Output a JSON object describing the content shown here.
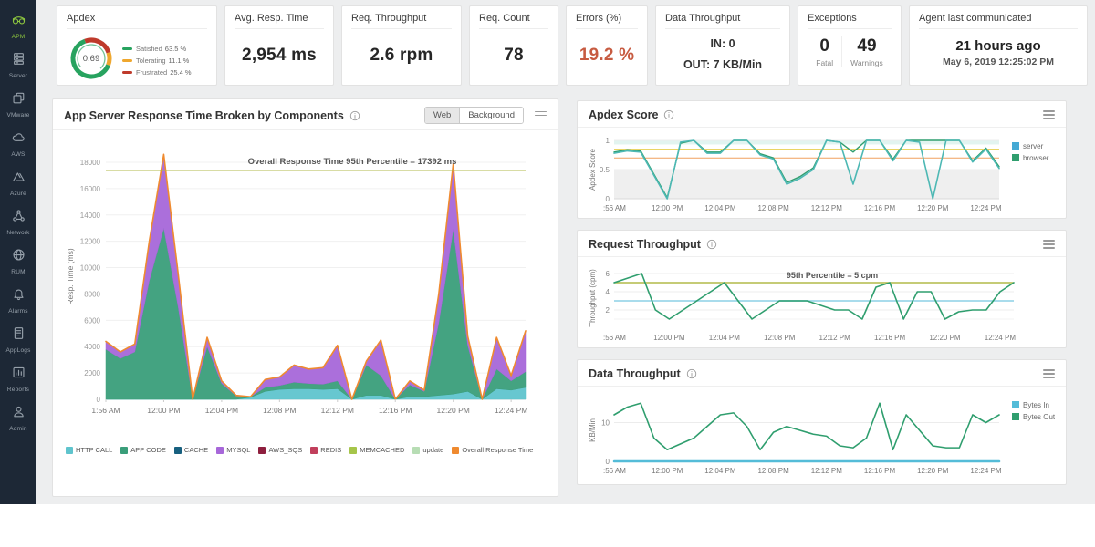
{
  "sidebar": {
    "bg": "#1d2836",
    "active_color": "#8dc63f",
    "items": [
      {
        "id": "apm",
        "label": "APM",
        "icon": "apm-icon",
        "active": true
      },
      {
        "id": "server",
        "label": "Server",
        "icon": "server-icon",
        "active": false
      },
      {
        "id": "vmware",
        "label": "VMware",
        "icon": "vmware-icon",
        "active": false
      },
      {
        "id": "aws",
        "label": "AWS",
        "icon": "aws-icon",
        "active": false
      },
      {
        "id": "azure",
        "label": "Azure",
        "icon": "azure-icon",
        "active": false
      },
      {
        "id": "network",
        "label": "Network",
        "icon": "network-icon",
        "active": false
      },
      {
        "id": "rum",
        "label": "RUM",
        "icon": "rum-icon",
        "active": false
      },
      {
        "id": "alarms",
        "label": "Alarms",
        "icon": "alarms-icon",
        "active": false
      },
      {
        "id": "applogs",
        "label": "AppLogs",
        "icon": "applogs-icon",
        "active": false
      },
      {
        "id": "reports",
        "label": "Reports",
        "icon": "reports-icon",
        "active": false
      },
      {
        "id": "admin",
        "label": "Admin",
        "icon": "admin-icon",
        "active": false
      }
    ]
  },
  "kpis": {
    "apdex": {
      "title": "Apdex",
      "score": "0.69",
      "segments": [
        {
          "label": "Satisfied",
          "display": "63.5 %",
          "pct": 63.5,
          "color": "#27a35f"
        },
        {
          "label": "Tolerating",
          "display": "11.1 %",
          "pct": 11.1,
          "color": "#efa72e"
        },
        {
          "label": "Frustrated",
          "display": "25.4 %",
          "pct": 25.4,
          "color": "#bf3a2b"
        }
      ]
    },
    "avg_resp_time": {
      "title": "Avg. Resp. Time",
      "value": "2,954 ms"
    },
    "req_throughput": {
      "title": "Req. Throughput",
      "value": "2.6 rpm"
    },
    "req_count": {
      "title": "Req. Count",
      "value": "78"
    },
    "errors": {
      "title": "Errors (%)",
      "value": "19.2 %",
      "color": "#c75b41"
    },
    "data_throughput": {
      "title": "Data Throughput",
      "in": "IN: 0",
      "out": "OUT: 7 KB/Min"
    },
    "exceptions": {
      "title": "Exceptions",
      "fatal_value": "0",
      "fatal_label": "Fatal",
      "warnings_value": "49",
      "warnings_label": "Warnings"
    },
    "agent": {
      "title": "Agent last communicated",
      "value": "21 hours ago",
      "timestamp": "May 6, 2019 12:25:02 PM"
    }
  },
  "main_chart": {
    "title": "App Server Response Time Broken by Components",
    "toggle": {
      "options": [
        "Web",
        "Background"
      ],
      "selected": "Web"
    },
    "annotation": "Overall Response Time 95th Percentile = 17392 ms",
    "percentile_value": 17392,
    "percentile_color": "#b2ba49",
    "ylabel": "Resp. Time (ms)",
    "yticks": [
      0,
      2000,
      4000,
      6000,
      8000,
      10000,
      12000,
      14000,
      16000,
      18000
    ],
    "xticks": [
      "1:56 AM",
      "12:00 PM",
      "12:04 PM",
      "12:08 PM",
      "12:12 PM",
      "12:16 PM",
      "12:20 PM",
      "12:24 PM"
    ],
    "xtick_indices": [
      0,
      4,
      8,
      12,
      16,
      20,
      24,
      28
    ],
    "chart_data": {
      "type": "stacked-area",
      "ylim": [
        0,
        18000
      ],
      "series": [
        {
          "name": "HTTP CALL",
          "color": "#5fc4cd",
          "values": [
            0,
            0,
            0,
            0,
            0,
            0,
            0,
            0,
            0,
            0,
            150,
            600,
            750,
            800,
            800,
            750,
            800,
            0,
            300,
            300,
            0,
            200,
            200,
            300,
            400,
            600,
            0,
            800,
            700,
            900
          ]
        },
        {
          "name": "APP CODE",
          "color": "#3a9e7a",
          "values": [
            3800,
            3100,
            3600,
            9000,
            13000,
            7000,
            0,
            4000,
            1200,
            250,
            50,
            300,
            300,
            500,
            400,
            400,
            600,
            0,
            2300,
            1500,
            0,
            900,
            400,
            5500,
            12500,
            3500,
            0,
            1500,
            700,
            1200
          ]
        },
        {
          "name": "CACHE",
          "color": "#17607f",
          "values": [
            0,
            0,
            0,
            0,
            0,
            0,
            0,
            0,
            0,
            0,
            0,
            0,
            0,
            0,
            0,
            0,
            0,
            0,
            0,
            0,
            0,
            0,
            0,
            0,
            0,
            0,
            0,
            0,
            0,
            0
          ]
        },
        {
          "name": "MYSQL",
          "color": "#a767d9",
          "values": [
            600,
            500,
            600,
            3000,
            5600,
            2500,
            0,
            700,
            200,
            50,
            0,
            600,
            650,
            1300,
            1100,
            1250,
            2700,
            0,
            300,
            2700,
            0,
            300,
            100,
            2200,
            5000,
            700,
            0,
            2400,
            400,
            3100
          ]
        },
        {
          "name": "AWS_SQS",
          "color": "#8e1f3e",
          "values": [
            0,
            0,
            0,
            0,
            0,
            0,
            0,
            0,
            0,
            0,
            0,
            0,
            0,
            0,
            0,
            0,
            0,
            0,
            0,
            0,
            0,
            0,
            0,
            0,
            0,
            0,
            0,
            0,
            0,
            0
          ]
        },
        {
          "name": "REDIS",
          "color": "#c13f5c",
          "values": [
            0,
            0,
            0,
            0,
            0,
            0,
            0,
            0,
            0,
            0,
            0,
            0,
            0,
            0,
            0,
            0,
            0,
            0,
            0,
            0,
            0,
            0,
            0,
            0,
            0,
            0,
            0,
            0,
            0,
            0
          ]
        },
        {
          "name": "MEMCACHED",
          "color": "#a6c54a",
          "values": [
            0,
            0,
            0,
            0,
            0,
            0,
            0,
            0,
            0,
            0,
            0,
            0,
            0,
            0,
            0,
            0,
            0,
            0,
            0,
            0,
            0,
            0,
            0,
            0,
            0,
            0,
            0,
            0,
            0,
            0
          ]
        },
        {
          "name": "update",
          "color": "#b7ddb4",
          "values": [
            0,
            0,
            0,
            0,
            0,
            0,
            0,
            0,
            0,
            0,
            0,
            0,
            0,
            0,
            0,
            0,
            0,
            0,
            0,
            0,
            0,
            0,
            0,
            0,
            0,
            0,
            0,
            0,
            0,
            0
          ]
        }
      ],
      "line_series": {
        "name": "Overall Response Time",
        "color": "#ef8a2f"
      }
    }
  },
  "right_charts": [
    {
      "id": "apdex-score",
      "title": "Apdex Score",
      "ylabel": "Apdex Score",
      "yticks": [
        0,
        0.5,
        1
      ],
      "xticks": [
        ":56 AM",
        "12:00 PM",
        "12:04 PM",
        "12:08 PM",
        "12:12 PM",
        "12:16 PM",
        "12:20 PM",
        "12:24 PM"
      ],
      "xtick_indices": [
        0,
        4,
        8,
        12,
        16,
        20,
        24,
        28
      ],
      "legend": [
        {
          "label": "server",
          "color": "#45a9d4"
        },
        {
          "label": "browser",
          "color": "#2f9e6e"
        }
      ],
      "thresholds": {
        "top_band": {
          "from": 0.93,
          "to": 1,
          "color": "#e2f4f0"
        },
        "yellow_line": {
          "y": 0.85,
          "color": "#e6cf4e"
        },
        "orange_line": {
          "y": 0.7,
          "color": "#f0a05e"
        },
        "gray_band": {
          "from": 0,
          "to": 0.5,
          "color": "#efefef"
        },
        "dotted_line": {
          "y": 0.5,
          "color": "#c5c5c5"
        }
      },
      "chart_data": {
        "type": "line",
        "ylim": [
          0,
          1
        ],
        "series": [
          {
            "name": "browser",
            "color": "#2f9e6e",
            "width": 1.4,
            "values": [
              0.8,
              0.84,
              0.82,
              0.42,
              0.02,
              0.95,
              1,
              0.8,
              0.8,
              1,
              1,
              0.77,
              0.7,
              0.28,
              0.38,
              0.53,
              1,
              0.97,
              0.8,
              1,
              1,
              0.68,
              1,
              1,
              1,
              1,
              1,
              0.65,
              0.87,
              0.55
            ]
          },
          {
            "name": "server",
            "color": "#4db8b4",
            "width": 1.6,
            "values": [
              0.78,
              0.82,
              0.8,
              0.4,
              0,
              0.97,
              1,
              0.78,
              0.78,
              1,
              1,
              0.75,
              0.68,
              0.25,
              0.35,
              0.5,
              1,
              0.97,
              0.25,
              1,
              1,
              0.65,
              1,
              0.97,
              0,
              1,
              1,
              0.63,
              0.85,
              0.52
            ]
          }
        ]
      }
    },
    {
      "id": "request-throughput",
      "title": "Request Throughput",
      "ylabel": "Throughput (cpm)",
      "yticks": [
        2,
        4,
        6
      ],
      "xticks": [
        ":56 AM",
        "12:00 PM",
        "12:04 PM",
        "12:08 PM",
        "12:12 PM",
        "12:16 PM",
        "12:20 PM",
        "12:24 PM"
      ],
      "xtick_indices": [
        0,
        4,
        8,
        12,
        16,
        20,
        24,
        28
      ],
      "annotation": "95th Percentile = 5 cpm",
      "percentile_value": 5,
      "percentile_color": "#b2ba49",
      "ref_line": {
        "y": 3,
        "color": "#a9dcec"
      },
      "chart_data": {
        "type": "line",
        "ylim": [
          0,
          6.6
        ],
        "series": [
          {
            "name": "requests",
            "color": "#2f9e6e",
            "width": 1.6,
            "values": [
              5,
              5.5,
              6,
              2,
              1,
              2,
              3,
              4,
              5,
              3,
              1,
              2,
              3,
              3,
              3,
              2.5,
              2,
              2,
              1,
              4.5,
              5,
              1,
              4,
              4,
              1,
              1.8,
              2,
              2,
              4,
              5
            ]
          }
        ]
      }
    },
    {
      "id": "data-throughput",
      "title": "Data Throughput",
      "ylabel": "KB/Min",
      "yticks": [
        0,
        10
      ],
      "xticks": [
        ":56 AM",
        "12:00 PM",
        "12:04 PM",
        "12:08 PM",
        "12:12 PM",
        "12:16 PM",
        "12:20 PM",
        "12:24 PM"
      ],
      "xtick_indices": [
        0,
        4,
        8,
        12,
        16,
        20,
        24,
        28
      ],
      "legend": [
        {
          "label": "Bytes In",
          "color": "#54bcd8"
        },
        {
          "label": "Bytes Out",
          "color": "#2f9e6e"
        }
      ],
      "chart_data": {
        "type": "line",
        "ylim": [
          0,
          16
        ],
        "series": [
          {
            "name": "Bytes In",
            "color": "#54bcd8",
            "width": 2.5,
            "values": [
              0,
              0,
              0,
              0,
              0,
              0,
              0,
              0,
              0,
              0,
              0,
              0,
              0,
              0,
              0,
              0,
              0,
              0,
              0,
              0,
              0,
              0,
              0,
              0,
              0,
              0,
              0,
              0,
              0,
              0
            ]
          },
          {
            "name": "Bytes Out",
            "color": "#2f9e6e",
            "width": 1.6,
            "values": [
              12,
              14,
              15,
              6,
              3,
              4.5,
              6,
              9,
              12,
              12.5,
              9,
              3,
              7.5,
              9,
              8,
              7,
              6.5,
              4,
              3.5,
              6,
              15,
              3,
              12,
              8,
              4,
              3.5,
              3.5,
              12,
              10,
              12
            ]
          }
        ]
      }
    }
  ]
}
